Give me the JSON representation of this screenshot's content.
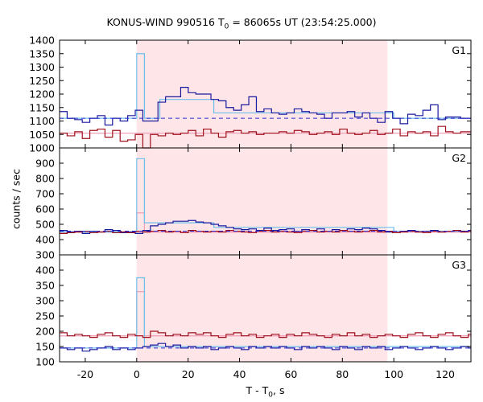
{
  "chart_data": {
    "type": "line",
    "title_main": "KONUS-WIND 990516 T",
    "title_sub": "0",
    "title_rest": " = 86065s UT (23:54:25.000)",
    "xlabel_main": "T - T",
    "xlabel_sub": "0",
    "xlabel_rest": ", s",
    "ylabel": "counts / sec",
    "xlim": [
      -30,
      130
    ],
    "xticks": [
      -20,
      0,
      20,
      40,
      60,
      80,
      100,
      120
    ],
    "colors": {
      "shade": "#fde5e8",
      "dark_blue": "#1a1a9e",
      "dark_red": "#a0101c",
      "light_blue": "#6ec0ec",
      "pink": "#f0a0b8",
      "dashed_blue": "#2a2ad0"
    },
    "shaded_interval": [
      0,
      97.5
    ],
    "bin_width": 2.944,
    "bin_start": -30,
    "panels": [
      {
        "label": "G1",
        "ylim": [
          1000,
          1400
        ],
        "yticks": [
          1000,
          1050,
          1100,
          1150,
          1200,
          1250,
          1300,
          1350,
          1400
        ],
        "show_lowest_tick": false,
        "background_level": 1110,
        "red_background_level": 1055,
        "lightblue_steps": [
          [
            -30,
            1110
          ],
          [
            0,
            1350
          ],
          [
            3,
            1110
          ],
          [
            9,
            1180
          ],
          [
            30,
            1130
          ],
          [
            100,
            1110
          ],
          [
            130,
            1110
          ]
        ],
        "pink_steps": [
          [
            -30,
            1055
          ],
          [
            0,
            1055
          ],
          [
            130,
            1055
          ]
        ],
        "series": [
          {
            "name": "blue",
            "values": [
              1135,
              1110,
              1105,
              1095,
              1110,
              1120,
              1085,
              1110,
              1100,
              1120,
              1140,
              1100,
              1100,
              1170,
              1190,
              1190,
              1225,
              1205,
              1200,
              1200,
              1180,
              1175,
              1150,
              1140,
              1160,
              1190,
              1135,
              1145,
              1130,
              1125,
              1130,
              1145,
              1135,
              1130,
              1125,
              1110,
              1130,
              1130,
              1135,
              1115,
              1130,
              1110,
              1095,
              1135,
              1110,
              1090,
              1125,
              1120,
              1140,
              1160,
              1105,
              1115,
              1115,
              1110,
              1110
            ]
          },
          {
            "name": "red",
            "values": [
              1055,
              1045,
              1060,
              1035,
              1065,
              1070,
              1040,
              1065,
              1025,
              1030,
              1050,
              1000,
              1050,
              1045,
              1055,
              1050,
              1055,
              1065,
              1045,
              1070,
              1055,
              1040,
              1060,
              1065,
              1055,
              1060,
              1050,
              1055,
              1055,
              1060,
              1055,
              1065,
              1060,
              1050,
              1055,
              1060,
              1050,
              1070,
              1055,
              1050,
              1055,
              1065,
              1050,
              1055,
              1070,
              1045,
              1060,
              1055,
              1060,
              1045,
              1080,
              1060,
              1055,
              1060,
              1060
            ]
          }
        ]
      },
      {
        "label": "G2",
        "ylim": [
          300,
          1000
        ],
        "yticks": [
          300,
          400,
          500,
          600,
          700,
          800,
          900
        ],
        "show_lowest_tick": true,
        "background_level": 455,
        "red_background_level": 448,
        "lightblue_steps": [
          [
            -30,
            450
          ],
          [
            0,
            930
          ],
          [
            3,
            510
          ],
          [
            9,
            510
          ],
          [
            30,
            480
          ],
          [
            100,
            455
          ],
          [
            130,
            455
          ]
        ],
        "pink_steps": [
          [
            -30,
            448
          ],
          [
            0,
            575
          ],
          [
            3,
            450
          ],
          [
            130,
            448
          ]
        ],
        "series": [
          {
            "name": "blue",
            "values": [
              460,
              450,
              455,
              440,
              455,
              450,
              465,
              460,
              445,
              450,
              440,
              460,
              490,
              500,
              510,
              520,
              520,
              525,
              515,
              510,
              500,
              490,
              480,
              470,
              465,
              470,
              460,
              475,
              460,
              465,
              470,
              455,
              465,
              460,
              470,
              455,
              465,
              460,
              470,
              465,
              475,
              470,
              460,
              450,
              445,
              455,
              460,
              450,
              455,
              460,
              450,
              455,
              460,
              455,
              460
            ]
          },
          {
            "name": "red",
            "values": [
              440,
              445,
              450,
              455,
              445,
              450,
              455,
              445,
              450,
              445,
              455,
              450,
              455,
              460,
              450,
              455,
              445,
              460,
              455,
              450,
              455,
              450,
              460,
              455,
              450,
              445,
              455,
              460,
              450,
              455,
              450,
              445,
              455,
              460,
              450,
              455,
              450,
              460,
              455,
              450,
              455,
              460,
              450,
              455,
              445,
              450,
              455,
              450,
              445,
              455,
              450,
              455,
              460,
              450,
              455
            ]
          }
        ]
      },
      {
        "label": "G3",
        "ylim": [
          100,
          450
        ],
        "yticks": [
          100,
          150,
          200,
          250,
          300,
          350,
          400
        ],
        "show_lowest_tick": true,
        "background_level": 145,
        "red_background_level": 185,
        "lightblue_steps": [
          [
            -30,
            145
          ],
          [
            0,
            375
          ],
          [
            3,
            150
          ],
          [
            130,
            148
          ]
        ],
        "pink_steps": [
          [
            -30,
            185
          ],
          [
            0,
            330
          ],
          [
            3,
            185
          ],
          [
            130,
            185
          ]
        ],
        "series": [
          {
            "name": "blue",
            "values": [
              145,
              140,
              145,
              135,
              140,
              145,
              150,
              140,
              145,
              140,
              145,
              150,
              155,
              160,
              150,
              155,
              145,
              150,
              145,
              150,
              140,
              145,
              150,
              145,
              140,
              150,
              145,
              150,
              145,
              150,
              145,
              140,
              150,
              145,
              150,
              145,
              140,
              150,
              145,
              140,
              150,
              145,
              150,
              140,
              145,
              150,
              145,
              140,
              145,
              150,
              145,
              140,
              145,
              150,
              145
            ]
          },
          {
            "name": "red",
            "values": [
              195,
              185,
              190,
              185,
              180,
              190,
              195,
              185,
              180,
              190,
              185,
              180,
              200,
              195,
              185,
              190,
              185,
              195,
              190,
              195,
              185,
              180,
              190,
              195,
              185,
              190,
              180,
              185,
              190,
              180,
              190,
              185,
              195,
              190,
              185,
              180,
              190,
              185,
              195,
              185,
              190,
              180,
              185,
              190,
              185,
              180,
              190,
              195,
              185,
              180,
              190,
              195,
              185,
              180,
              190
            ]
          }
        ]
      }
    ]
  }
}
